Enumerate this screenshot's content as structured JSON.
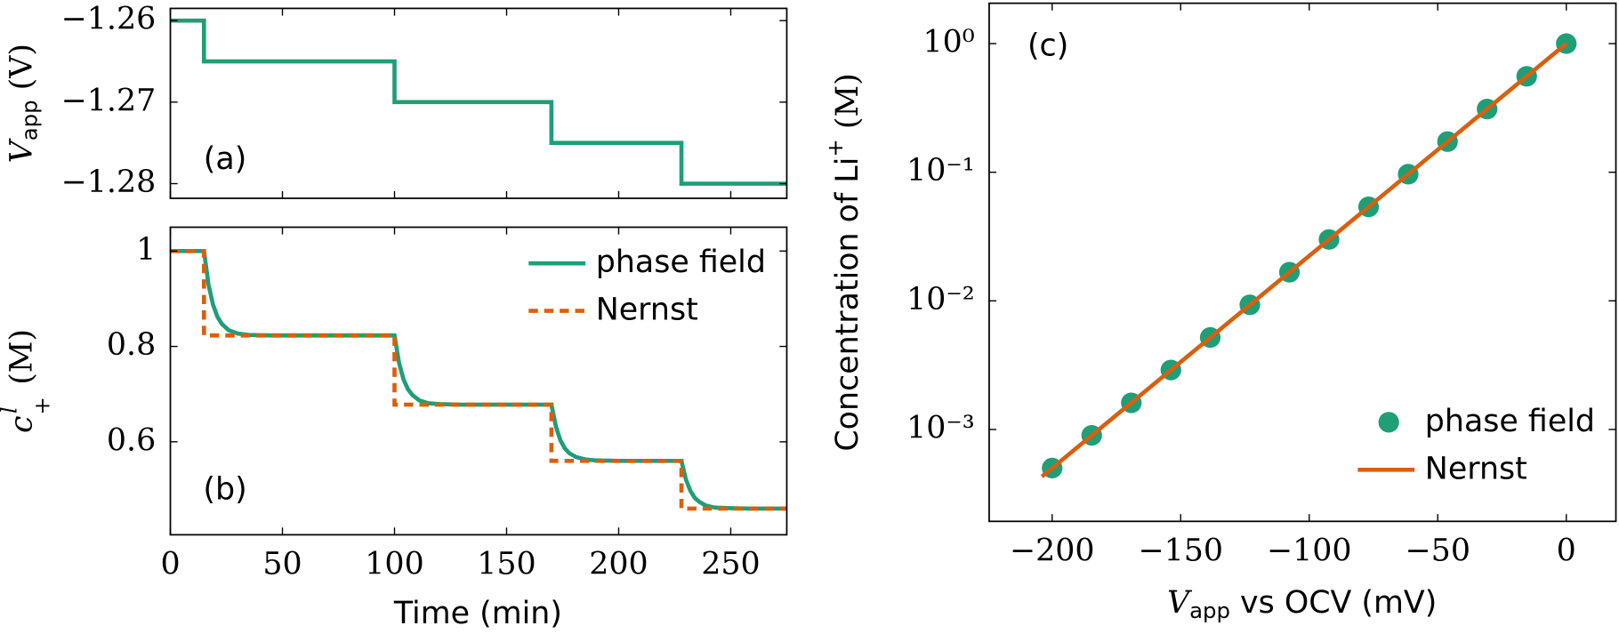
{
  "chart_data": [
    {
      "type": "line",
      "annotation": "(a)",
      "ylabel": [
        "V",
        "app",
        " (V)"
      ],
      "xlim": [
        0,
        275
      ],
      "ylim": [
        -1.2818,
        -1.2585
      ],
      "yticks": [
        {
          "value": -1.26,
          "label": "−1.26"
        },
        {
          "value": -1.27,
          "label": "−1.27"
        },
        {
          "value": -1.28,
          "label": "−1.28"
        }
      ],
      "series": [
        {
          "color": "#1f9e78",
          "x": [
            0,
            15,
            15,
            100,
            100,
            170,
            170,
            228,
            228,
            275
          ],
          "values": [
            -1.26,
            -1.26,
            -1.265,
            -1.265,
            -1.27,
            -1.27,
            -1.275,
            -1.275,
            -1.28,
            -1.28
          ]
        }
      ]
    },
    {
      "type": "line",
      "annotation": "(b)",
      "ylabel": [
        "c",
        "l",
        "+",
        " (M)"
      ],
      "xlabel": "Time (min)",
      "xlim": [
        0,
        275
      ],
      "ylim": [
        0.405,
        1.05
      ],
      "xticks": [
        0,
        50,
        100,
        150,
        200,
        250
      ],
      "yticks": [
        1,
        0.8,
        0.6
      ],
      "legend": "upper right",
      "series": [
        {
          "name": "phase field",
          "color": "#1f9e78",
          "x": [
            0,
            15,
            17,
            19,
            21,
            23,
            26,
            30,
            35,
            45,
            100,
            102,
            104,
            106,
            108,
            111,
            115,
            120,
            130,
            170,
            172,
            174,
            176,
            178,
            181,
            185,
            190,
            200,
            228,
            230,
            232,
            234,
            236,
            239,
            243,
            248,
            258,
            275
          ],
          "values": [
            1,
            1,
            0.93,
            0.888,
            0.862,
            0.847,
            0.834,
            0.827,
            0.824,
            0.823,
            0.823,
            0.766,
            0.731,
            0.71,
            0.698,
            0.687,
            0.681,
            0.679,
            0.678,
            0.678,
            0.632,
            0.603,
            0.586,
            0.576,
            0.568,
            0.563,
            0.561,
            0.56,
            0.56,
            0.521,
            0.497,
            0.482,
            0.474,
            0.466,
            0.462,
            0.461,
            0.46,
            0.46
          ]
        },
        {
          "name": "Nernst",
          "color": "#d95f0e",
          "dash": true,
          "x": [
            0,
            15,
            15,
            100,
            100,
            170,
            170,
            228,
            228,
            275
          ],
          "values": [
            1,
            1,
            0.823,
            0.823,
            0.678,
            0.678,
            0.56,
            0.56,
            0.46,
            0.46
          ]
        }
      ]
    },
    {
      "type": "line",
      "annotation": "(c)",
      "log_y": true,
      "ylabel": [
        "Concentration of Li",
        "+",
        " (M)"
      ],
      "xlabel": [
        "V",
        "app",
        " vs OCV (mV)"
      ],
      "xlim": [
        -224.5,
        19.3
      ],
      "ylim": [
        0.000193,
        2.06
      ],
      "xticks": [
        {
          "value": -200,
          "label": "−200"
        },
        {
          "value": -150,
          "label": "−150"
        },
        {
          "value": -100,
          "label": "−100"
        },
        {
          "value": -50,
          "label": "−50"
        },
        0
      ],
      "yticks": [
        {
          "value": 1,
          "label": "10⁰"
        },
        {
          "value": 0.1,
          "label": "10⁻¹"
        },
        {
          "value": 0.01,
          "label": "10⁻²"
        },
        {
          "value": 0.001,
          "label": "10⁻³"
        }
      ],
      "legend": "lower right",
      "series": [
        {
          "name": "phase field",
          "color": "#1f9e78",
          "type": "scatter",
          "x": [
            -200,
            -184.6,
            -169.2,
            -153.8,
            -138.5,
            -123.1,
            -107.7,
            -92.3,
            -76.9,
            -61.5,
            -46.2,
            -30.8,
            -15.4,
            0
          ],
          "values": [
            0.000501,
            0.0009,
            0.00161,
            0.0029,
            0.00519,
            0.00931,
            0.0167,
            0.03,
            0.0538,
            0.0966,
            0.173,
            0.31,
            0.557,
            1
          ]
        },
        {
          "name": "Nernst",
          "color": "#d95f0e",
          "type": "line",
          "x": [
            -204,
            0
          ],
          "values": [
            0.00043,
            1
          ]
        }
      ]
    }
  ]
}
